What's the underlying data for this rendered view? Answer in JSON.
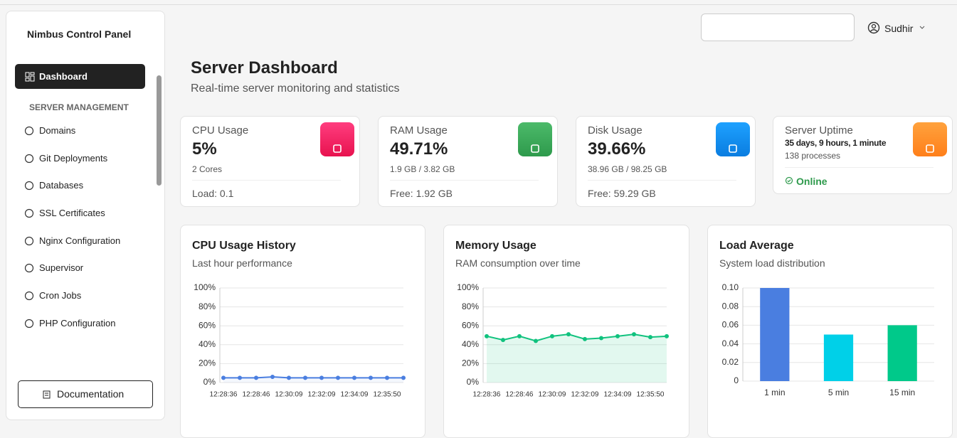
{
  "sidebar": {
    "brand": "Nimbus Control Panel",
    "active": "Dashboard",
    "section": "SERVER MANAGEMENT",
    "items": [
      "Domains",
      "Git Deployments",
      "Databases",
      "SSL Certificates",
      "Nginx Configuration",
      "Supervisor",
      "Cron Jobs",
      "PHP Configuration"
    ],
    "button": "Documentation"
  },
  "header": {
    "user": "Sudhir",
    "title": "Server Dashboard",
    "subtitle": "Real-time server monitoring and statistics"
  },
  "stats": [
    {
      "label": "CPU Usage",
      "value": "5%",
      "detail": "2 Cores",
      "footer": "Load: 0.1"
    },
    {
      "label": "RAM Usage",
      "value": "49.71%",
      "detail": "1.9 GB / 3.82 GB",
      "footer": "Free: 1.92 GB"
    },
    {
      "label": "Disk Usage",
      "value": "39.66%",
      "detail": "38.96 GB / 98.25 GB",
      "footer": "Free: 59.29 GB"
    },
    {
      "label": "Server Uptime",
      "value": "35 days, 9 hours, 1 minute",
      "detail": "138 processes",
      "footer": "Online"
    }
  ],
  "chart_data": [
    {
      "type": "line",
      "title": "CPU Usage History",
      "subtitle": "Last hour performance",
      "categories": [
        "12:28:36",
        null,
        "12:28:46",
        null,
        "12:30:09",
        null,
        "12:32:09",
        null,
        "12:34:09",
        null,
        "12:35:50",
        null
      ],
      "values": [
        5,
        5,
        5,
        6,
        5,
        5,
        5,
        5,
        5,
        5,
        5,
        5
      ],
      "color": "#4a7ee0",
      "ylim": [
        0,
        100
      ],
      "yticks": [
        {
          "value": 0,
          "label": "0%"
        },
        {
          "value": 20,
          "label": "20%"
        },
        {
          "value": 40,
          "label": "40%"
        },
        {
          "value": 60,
          "label": "60%"
        },
        {
          "value": 80,
          "label": "80%"
        },
        {
          "value": 100,
          "label": "100%"
        }
      ],
      "grid": true
    },
    {
      "type": "area",
      "title": "Memory Usage",
      "subtitle": "RAM consumption over time",
      "categories": [
        "12:28:36",
        null,
        "12:28:46",
        null,
        "12:30:09",
        null,
        "12:32:09",
        null,
        "12:34:09",
        null,
        "12:35:50",
        null
      ],
      "values": [
        49,
        45,
        49,
        44,
        49,
        51,
        46,
        47,
        49,
        51,
        48,
        49
      ],
      "color": "#10c27e",
      "ylim": [
        0,
        100
      ],
      "yticks": [
        {
          "value": 0,
          "label": "0%"
        },
        {
          "value": 20,
          "label": "20%"
        },
        {
          "value": 40,
          "label": "40%"
        },
        {
          "value": 60,
          "label": "60%"
        },
        {
          "value": 80,
          "label": "80%"
        },
        {
          "value": 100,
          "label": "100%"
        }
      ],
      "grid": true
    },
    {
      "type": "bar",
      "title": "Load Average",
      "subtitle": "System load distribution",
      "categories": [
        "1 min",
        "5 min",
        "15 min"
      ],
      "values": [
        0.1,
        0.05,
        0.06
      ],
      "colors": [
        "#4a7ee0",
        "#00d0e8",
        "#00c98a"
      ],
      "ylim": [
        0,
        0.1
      ],
      "yticks": [
        0,
        0.02,
        0.04,
        0.06,
        0.08,
        {
          "value": 0.1,
          "label": "0.10"
        }
      ],
      "grid": true
    }
  ]
}
